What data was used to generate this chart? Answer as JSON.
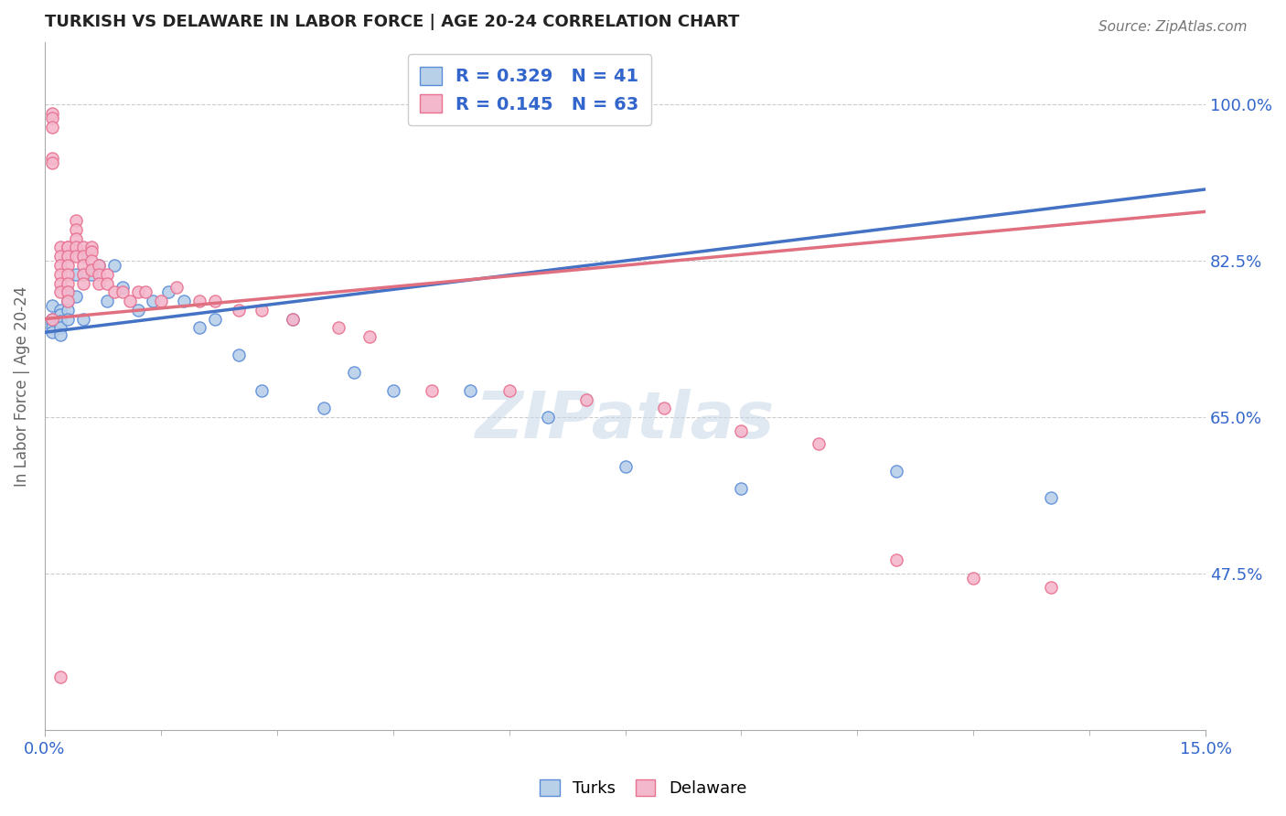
{
  "title": "TURKISH VS DELAWARE IN LABOR FORCE | AGE 20-24 CORRELATION CHART",
  "source": "Source: ZipAtlas.com",
  "ylabel": "In Labor Force | Age 20-24",
  "x_min": 0.0,
  "x_max": 0.15,
  "y_min": 0.3,
  "y_max": 1.07,
  "y_ticks": [
    0.475,
    0.65,
    0.825,
    1.0
  ],
  "y_tick_labels": [
    "47.5%",
    "65.0%",
    "82.5%",
    "100.0%"
  ],
  "x_tick_labels": [
    "0.0%",
    "15.0%"
  ],
  "turks_color": "#b8d0e8",
  "delaware_color": "#f4b8cc",
  "turks_edge_color": "#5b8dd9",
  "delaware_edge_color": "#e87090",
  "turks_line_color": "#4472c4",
  "delaware_line_color": "#e07080",
  "R_turks": 0.329,
  "N_turks": 41,
  "R_delaware": 0.145,
  "N_delaware": 63,
  "watermark": "ZIPatlas",
  "turks_x": [
    0.001,
    0.001,
    0.001,
    0.001,
    0.001,
    0.002,
    0.002,
    0.002,
    0.002,
    0.002,
    0.003,
    0.003,
    0.003,
    0.003,
    0.004,
    0.004,
    0.005,
    0.005,
    0.006,
    0.007,
    0.008,
    0.009,
    0.01,
    0.012,
    0.014,
    0.016,
    0.018,
    0.02,
    0.022,
    0.025,
    0.028,
    0.032,
    0.036,
    0.04,
    0.045,
    0.055,
    0.065,
    0.075,
    0.09,
    0.11,
    0.13
  ],
  "turks_y": [
    0.775,
    0.76,
    0.755,
    0.75,
    0.745,
    0.77,
    0.765,
    0.758,
    0.75,
    0.742,
    0.79,
    0.78,
    0.77,
    0.76,
    0.81,
    0.785,
    0.83,
    0.76,
    0.81,
    0.82,
    0.78,
    0.82,
    0.795,
    0.77,
    0.78,
    0.79,
    0.78,
    0.75,
    0.76,
    0.72,
    0.68,
    0.76,
    0.66,
    0.7,
    0.68,
    0.68,
    0.65,
    0.595,
    0.57,
    0.59,
    0.56
  ],
  "delaware_x": [
    0.001,
    0.001,
    0.001,
    0.001,
    0.001,
    0.001,
    0.002,
    0.002,
    0.002,
    0.002,
    0.002,
    0.002,
    0.002,
    0.003,
    0.003,
    0.003,
    0.003,
    0.003,
    0.003,
    0.003,
    0.003,
    0.004,
    0.004,
    0.004,
    0.004,
    0.004,
    0.005,
    0.005,
    0.005,
    0.005,
    0.005,
    0.006,
    0.006,
    0.006,
    0.006,
    0.007,
    0.007,
    0.007,
    0.008,
    0.008,
    0.009,
    0.01,
    0.011,
    0.012,
    0.013,
    0.015,
    0.017,
    0.02,
    0.022,
    0.025,
    0.028,
    0.032,
    0.038,
    0.042,
    0.05,
    0.06,
    0.07,
    0.08,
    0.09,
    0.1,
    0.11,
    0.12,
    0.13
  ],
  "delaware_y": [
    0.76,
    0.94,
    0.935,
    0.99,
    0.985,
    0.975,
    0.84,
    0.83,
    0.82,
    0.81,
    0.8,
    0.79,
    0.36,
    0.84,
    0.84,
    0.83,
    0.82,
    0.81,
    0.8,
    0.79,
    0.78,
    0.87,
    0.86,
    0.85,
    0.84,
    0.83,
    0.84,
    0.83,
    0.82,
    0.81,
    0.8,
    0.84,
    0.835,
    0.825,
    0.815,
    0.82,
    0.81,
    0.8,
    0.81,
    0.8,
    0.79,
    0.79,
    0.78,
    0.79,
    0.79,
    0.78,
    0.795,
    0.78,
    0.78,
    0.77,
    0.77,
    0.76,
    0.75,
    0.74,
    0.68,
    0.68,
    0.67,
    0.66,
    0.635,
    0.62,
    0.49,
    0.47,
    0.46
  ]
}
